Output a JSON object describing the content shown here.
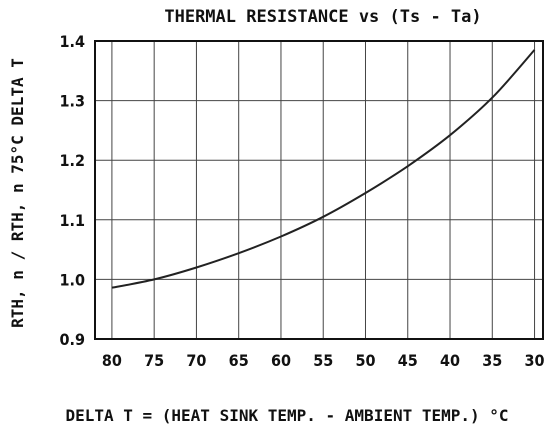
{
  "chart_data": {
    "type": "line",
    "title": "THERMAL RESISTANCE vs (Ts - Ta)",
    "xlabel": "DELTA T = (HEAT SINK TEMP. - AMBIENT TEMP.) °C",
    "ylabel": "RTH, n / RTH, n 75°C DELTA T",
    "x_reversed": true,
    "xlim": [
      82,
      29
    ],
    "ylim": [
      0.9,
      1.4
    ],
    "x_ticks": [
      "80",
      "75",
      "70",
      "65",
      "60",
      "55",
      "50",
      "45",
      "40",
      "35",
      "30"
    ],
    "y_ticks": [
      "0.9",
      "1.0",
      "1.1",
      "1.2",
      "1.3",
      "1.4"
    ],
    "grid": true,
    "series": [
      {
        "x": [
          80,
          75,
          70,
          65,
          60,
          55,
          50,
          45,
          40,
          35,
          30
        ],
        "y": [
          0.986,
          1.0,
          1.02,
          1.044,
          1.072,
          1.105,
          1.145,
          1.19,
          1.242,
          1.305,
          1.385
        ],
        "color": "#222222"
      }
    ]
  }
}
